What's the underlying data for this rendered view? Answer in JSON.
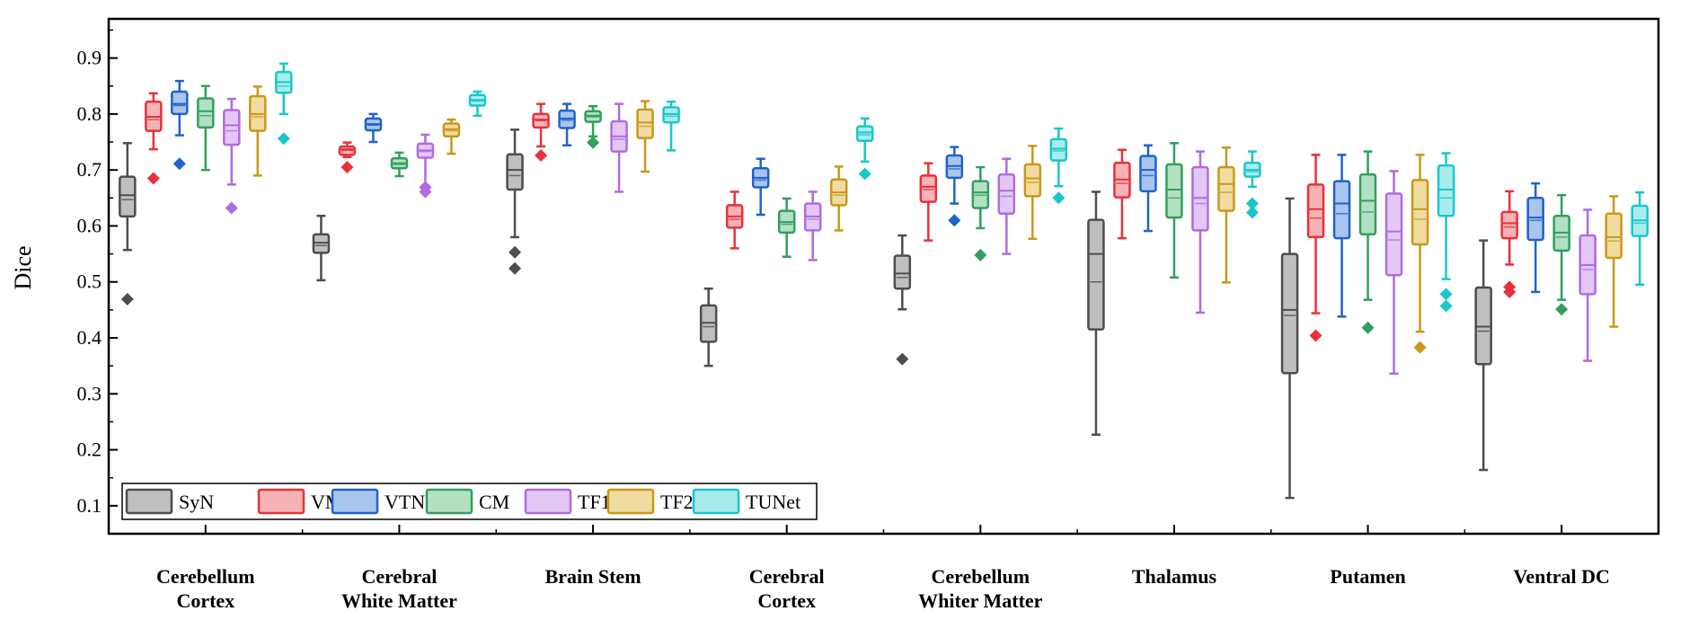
{
  "chart_data": {
    "type": "boxplot",
    "ylabel": "Dice",
    "xlabel": "",
    "ylim": [
      0.05,
      0.97
    ],
    "yticks": [
      "0.1",
      "0.2",
      "0.3",
      "0.4",
      "0.5",
      "0.6",
      "0.7",
      "0.8",
      "0.9"
    ],
    "legend_position": "bottom-left",
    "categories": [
      [
        "Cerebellum",
        "Cortex"
      ],
      [
        "Cerebral",
        "White Matter"
      ],
      [
        "Brain Stem"
      ],
      [
        "Cerebral",
        "Cortex"
      ],
      [
        "Cerebellum",
        "Whiter Matter"
      ],
      [
        "Thalamus"
      ],
      [
        "Putamen"
      ],
      [
        "Ventral DC"
      ]
    ],
    "series": [
      {
        "name": "SyN",
        "color": "#4d4d4d",
        "fill": "#bfbfbf",
        "boxes": [
          {
            "min": 0.557,
            "q1": 0.617,
            "median": 0.655,
            "mean": 0.647,
            "q3": 0.688,
            "max": 0.748,
            "outliers": [
              0.469
            ]
          },
          {
            "min": 0.503,
            "q1": 0.552,
            "median": 0.57,
            "mean": 0.565,
            "q3": 0.585,
            "max": 0.618,
            "outliers": []
          },
          {
            "min": 0.58,
            "q1": 0.665,
            "median": 0.7,
            "mean": 0.69,
            "q3": 0.728,
            "max": 0.772,
            "outliers": [
              0.553,
              0.524
            ]
          },
          {
            "min": 0.35,
            "q1": 0.393,
            "median": 0.427,
            "mean": 0.42,
            "q3": 0.458,
            "max": 0.488,
            "outliers": []
          },
          {
            "min": 0.451,
            "q1": 0.488,
            "median": 0.515,
            "mean": 0.508,
            "q3": 0.547,
            "max": 0.583,
            "outliers": [
              0.362
            ]
          },
          {
            "min": 0.227,
            "q1": 0.415,
            "median": 0.55,
            "mean": 0.5,
            "q3": 0.611,
            "max": 0.661,
            "outliers": []
          },
          {
            "min": 0.114,
            "q1": 0.337,
            "median": 0.45,
            "mean": 0.44,
            "q3": 0.55,
            "max": 0.649,
            "outliers": []
          },
          {
            "min": 0.164,
            "q1": 0.353,
            "median": 0.42,
            "mean": 0.412,
            "q3": 0.49,
            "max": 0.574,
            "outliers": []
          }
        ]
      },
      {
        "name": "VM",
        "color": "#e8313a",
        "fill": "#f6b3b6",
        "boxes": [
          {
            "min": 0.737,
            "q1": 0.77,
            "median": 0.795,
            "mean": 0.79,
            "q3": 0.822,
            "max": 0.837,
            "outliers": [
              0.685
            ]
          },
          {
            "min": 0.723,
            "q1": 0.727,
            "median": 0.737,
            "mean": 0.735,
            "q3": 0.742,
            "max": 0.749,
            "outliers": [
              0.705
            ]
          },
          {
            "min": 0.742,
            "q1": 0.776,
            "median": 0.79,
            "mean": 0.788,
            "q3": 0.8,
            "max": 0.818,
            "outliers": [
              0.726
            ]
          },
          {
            "min": 0.56,
            "q1": 0.597,
            "median": 0.617,
            "mean": 0.612,
            "q3": 0.637,
            "max": 0.661,
            "outliers": []
          },
          {
            "min": 0.574,
            "q1": 0.643,
            "median": 0.67,
            "mean": 0.665,
            "q3": 0.69,
            "max": 0.712,
            "outliers": []
          },
          {
            "min": 0.578,
            "q1": 0.651,
            "median": 0.683,
            "mean": 0.676,
            "q3": 0.713,
            "max": 0.736,
            "outliers": []
          },
          {
            "min": 0.444,
            "q1": 0.58,
            "median": 0.63,
            "mean": 0.614,
            "q3": 0.674,
            "max": 0.727,
            "outliers": [
              0.404
            ]
          },
          {
            "min": 0.531,
            "q1": 0.578,
            "median": 0.605,
            "mean": 0.598,
            "q3": 0.625,
            "max": 0.662,
            "outliers": [
              0.491,
              0.482
            ]
          }
        ]
      },
      {
        "name": "VTN",
        "color": "#1f63c9",
        "fill": "#a9c5ee",
        "boxes": [
          {
            "min": 0.762,
            "q1": 0.8,
            "median": 0.818,
            "mean": 0.815,
            "q3": 0.84,
            "max": 0.859,
            "outliers": [
              0.711
            ]
          },
          {
            "min": 0.75,
            "q1": 0.771,
            "median": 0.782,
            "mean": 0.78,
            "q3": 0.792,
            "max": 0.8,
            "outliers": []
          },
          {
            "min": 0.744,
            "q1": 0.775,
            "median": 0.792,
            "mean": 0.789,
            "q3": 0.806,
            "max": 0.818,
            "outliers": []
          },
          {
            "min": 0.62,
            "q1": 0.669,
            "median": 0.686,
            "mean": 0.682,
            "q3": 0.703,
            "max": 0.72,
            "outliers": []
          },
          {
            "min": 0.64,
            "q1": 0.686,
            "median": 0.707,
            "mean": 0.702,
            "q3": 0.726,
            "max": 0.741,
            "outliers": [
              0.61
            ]
          },
          {
            "min": 0.591,
            "q1": 0.662,
            "median": 0.7,
            "mean": 0.69,
            "q3": 0.725,
            "max": 0.744,
            "outliers": []
          },
          {
            "min": 0.438,
            "q1": 0.578,
            "median": 0.64,
            "mean": 0.622,
            "q3": 0.68,
            "max": 0.727,
            "outliers": []
          },
          {
            "min": 0.482,
            "q1": 0.575,
            "median": 0.615,
            "mean": 0.61,
            "q3": 0.65,
            "max": 0.676,
            "outliers": []
          }
        ]
      },
      {
        "name": "CM",
        "color": "#2fa05d",
        "fill": "#b3e0c3",
        "boxes": [
          {
            "min": 0.7,
            "q1": 0.776,
            "median": 0.805,
            "mean": 0.797,
            "q3": 0.828,
            "max": 0.85,
            "outliers": []
          },
          {
            "min": 0.689,
            "q1": 0.703,
            "median": 0.712,
            "mean": 0.71,
            "q3": 0.721,
            "max": 0.731,
            "outliers": []
          },
          {
            "min": 0.76,
            "q1": 0.786,
            "median": 0.797,
            "mean": 0.795,
            "q3": 0.805,
            "max": 0.814,
            "outliers": [
              0.749
            ]
          },
          {
            "min": 0.545,
            "q1": 0.588,
            "median": 0.607,
            "mean": 0.603,
            "q3": 0.627,
            "max": 0.649,
            "outliers": []
          },
          {
            "min": 0.596,
            "q1": 0.632,
            "median": 0.66,
            "mean": 0.655,
            "q3": 0.68,
            "max": 0.705,
            "outliers": [
              0.548
            ]
          },
          {
            "min": 0.508,
            "q1": 0.615,
            "median": 0.665,
            "mean": 0.65,
            "q3": 0.71,
            "max": 0.748,
            "outliers": []
          },
          {
            "min": 0.468,
            "q1": 0.585,
            "median": 0.645,
            "mean": 0.625,
            "q3": 0.692,
            "max": 0.733,
            "outliers": [
              0.418
            ]
          },
          {
            "min": 0.468,
            "q1": 0.556,
            "median": 0.588,
            "mean": 0.58,
            "q3": 0.618,
            "max": 0.655,
            "outliers": [
              0.451
            ]
          }
        ]
      },
      {
        "name": "TF1",
        "color": "#b06be0",
        "fill": "#e3c8f5",
        "boxes": [
          {
            "min": 0.674,
            "q1": 0.745,
            "median": 0.78,
            "mean": 0.77,
            "q3": 0.807,
            "max": 0.827,
            "outliers": [
              0.632
            ]
          },
          {
            "min": 0.672,
            "q1": 0.722,
            "median": 0.735,
            "mean": 0.733,
            "q3": 0.747,
            "max": 0.763,
            "outliers": [
              0.669,
              0.661
            ]
          },
          {
            "min": 0.661,
            "q1": 0.733,
            "median": 0.76,
            "mean": 0.755,
            "q3": 0.787,
            "max": 0.818,
            "outliers": []
          },
          {
            "min": 0.539,
            "q1": 0.592,
            "median": 0.617,
            "mean": 0.612,
            "q3": 0.64,
            "max": 0.661,
            "outliers": []
          },
          {
            "min": 0.55,
            "q1": 0.622,
            "median": 0.663,
            "mean": 0.653,
            "q3": 0.692,
            "max": 0.72,
            "outliers": []
          },
          {
            "min": 0.445,
            "q1": 0.592,
            "median": 0.65,
            "mean": 0.64,
            "q3": 0.705,
            "max": 0.733,
            "outliers": []
          },
          {
            "min": 0.336,
            "q1": 0.512,
            "median": 0.59,
            "mean": 0.575,
            "q3": 0.658,
            "max": 0.698,
            "outliers": []
          },
          {
            "min": 0.359,
            "q1": 0.478,
            "median": 0.53,
            "mean": 0.522,
            "q3": 0.583,
            "max": 0.629,
            "outliers": []
          }
        ]
      },
      {
        "name": "TF2",
        "color": "#c9981a",
        "fill": "#f0dca0",
        "boxes": [
          {
            "min": 0.69,
            "q1": 0.77,
            "median": 0.8,
            "mean": 0.795,
            "q3": 0.832,
            "max": 0.849,
            "outliers": []
          },
          {
            "min": 0.729,
            "q1": 0.76,
            "median": 0.773,
            "mean": 0.77,
            "q3": 0.783,
            "max": 0.79,
            "outliers": []
          },
          {
            "min": 0.697,
            "q1": 0.757,
            "median": 0.785,
            "mean": 0.778,
            "q3": 0.808,
            "max": 0.823,
            "outliers": []
          },
          {
            "min": 0.592,
            "q1": 0.637,
            "median": 0.66,
            "mean": 0.655,
            "q3": 0.683,
            "max": 0.706,
            "outliers": []
          },
          {
            "min": 0.577,
            "q1": 0.653,
            "median": 0.685,
            "mean": 0.678,
            "q3": 0.71,
            "max": 0.743,
            "outliers": []
          },
          {
            "min": 0.499,
            "q1": 0.627,
            "median": 0.675,
            "mean": 0.66,
            "q3": 0.705,
            "max": 0.74,
            "outliers": []
          },
          {
            "min": 0.411,
            "q1": 0.567,
            "median": 0.63,
            "mean": 0.612,
            "q3": 0.682,
            "max": 0.727,
            "outliers": [
              0.383
            ]
          },
          {
            "min": 0.42,
            "q1": 0.543,
            "median": 0.58,
            "mean": 0.573,
            "q3": 0.622,
            "max": 0.653,
            "outliers": []
          }
        ]
      },
      {
        "name": "TUNet",
        "color": "#19c7c9",
        "fill": "#a9ecec",
        "boxes": [
          {
            "min": 0.8,
            "q1": 0.838,
            "median": 0.857,
            "mean": 0.85,
            "q3": 0.875,
            "max": 0.89,
            "outliers": [
              0.756
            ]
          },
          {
            "min": 0.797,
            "q1": 0.815,
            "median": 0.825,
            "mean": 0.823,
            "q3": 0.834,
            "max": 0.84,
            "outliers": []
          },
          {
            "min": 0.735,
            "q1": 0.785,
            "median": 0.8,
            "mean": 0.796,
            "q3": 0.812,
            "max": 0.822,
            "outliers": []
          },
          {
            "min": 0.715,
            "q1": 0.752,
            "median": 0.767,
            "mean": 0.763,
            "q3": 0.778,
            "max": 0.792,
            "outliers": [
              0.693
            ]
          },
          {
            "min": 0.671,
            "q1": 0.717,
            "median": 0.738,
            "mean": 0.734,
            "q3": 0.755,
            "max": 0.774,
            "outliers": [
              0.65
            ]
          },
          {
            "min": 0.67,
            "q1": 0.688,
            "median": 0.7,
            "mean": 0.697,
            "q3": 0.713,
            "max": 0.733,
            "outliers": [
              0.64,
              0.624
            ]
          },
          {
            "min": 0.505,
            "q1": 0.618,
            "median": 0.665,
            "mean": 0.65,
            "q3": 0.708,
            "max": 0.73,
            "outliers": [
              0.478,
              0.457
            ]
          },
          {
            "min": 0.495,
            "q1": 0.582,
            "median": 0.61,
            "mean": 0.605,
            "q3": 0.636,
            "max": 0.66,
            "outliers": []
          }
        ]
      }
    ]
  }
}
